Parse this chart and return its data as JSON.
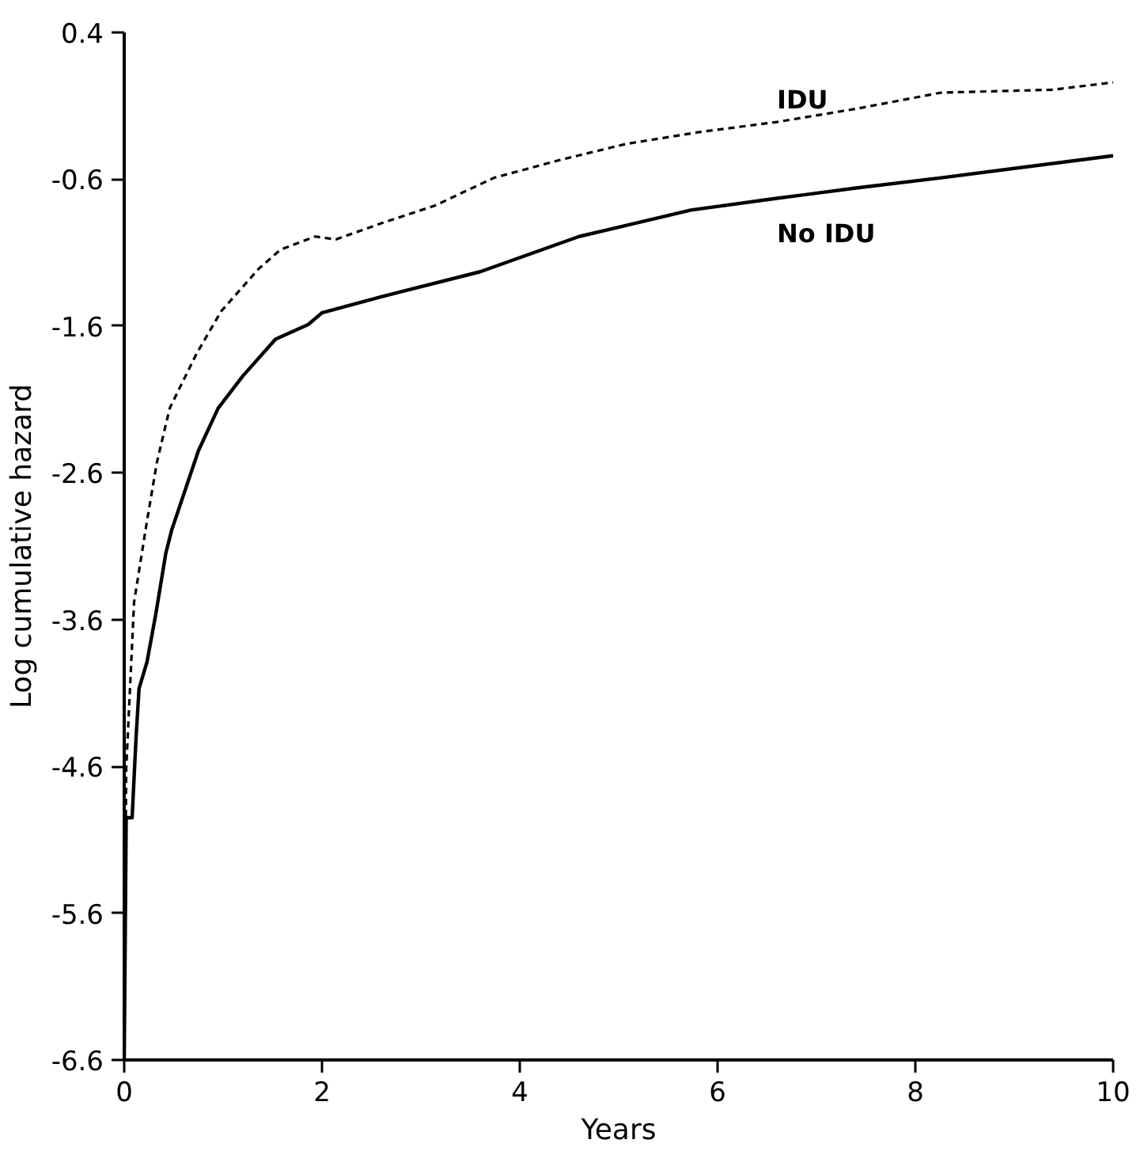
{
  "chart_data": {
    "type": "line",
    "xlabel": "Years",
    "ylabel": "Log cumulative hazard",
    "xlim": [
      0,
      10
    ],
    "ylim": [
      -6.6,
      0.4
    ],
    "xticks": [
      0,
      2,
      4,
      6,
      8,
      10
    ],
    "yticks": [
      -6.6,
      -5.6,
      -4.6,
      -3.6,
      -2.6,
      -1.6,
      -0.6,
      0.4
    ],
    "grid": false,
    "series": [
      {
        "name": "IDU",
        "color": "#000000",
        "line_style": "dashed",
        "x": [
          0,
          0.02,
          0.1,
          0.23,
          0.33,
          0.46,
          0.73,
          0.98,
          1.36,
          1.58,
          1.93,
          2.14,
          2.6,
          3.14,
          3.74,
          4.4,
          5.07,
          5.8,
          6.6,
          7.4,
          8.26,
          9.39,
          10
        ],
        "values": [
          -6.6,
          -4.62,
          -3.48,
          -2.93,
          -2.53,
          -2.16,
          -1.79,
          -1.5,
          -1.21,
          -1.08,
          -0.99,
          -1.01,
          -0.9,
          -0.78,
          -0.59,
          -0.47,
          -0.36,
          -0.28,
          -0.21,
          -0.12,
          -0.01,
          0.01,
          0.06
        ]
      },
      {
        "name": "No IDU",
        "color": "#000000",
        "line_style": "solid",
        "x": [
          0,
          0.02,
          0.08,
          0.12,
          0.15,
          0.23,
          0.32,
          0.42,
          0.48,
          0.75,
          0.95,
          1.2,
          1.53,
          1.86,
          2.0,
          2.6,
          3.6,
          4.6,
          5.73,
          6.6,
          7.4,
          8.26,
          10
        ],
        "values": [
          -6.6,
          -4.95,
          -4.95,
          -4.4,
          -4.07,
          -3.89,
          -3.56,
          -3.15,
          -2.99,
          -2.45,
          -2.16,
          -1.94,
          -1.69,
          -1.59,
          -1.51,
          -1.4,
          -1.23,
          -0.99,
          -0.81,
          -0.73,
          -0.66,
          -0.59,
          -0.44
        ]
      }
    ]
  }
}
